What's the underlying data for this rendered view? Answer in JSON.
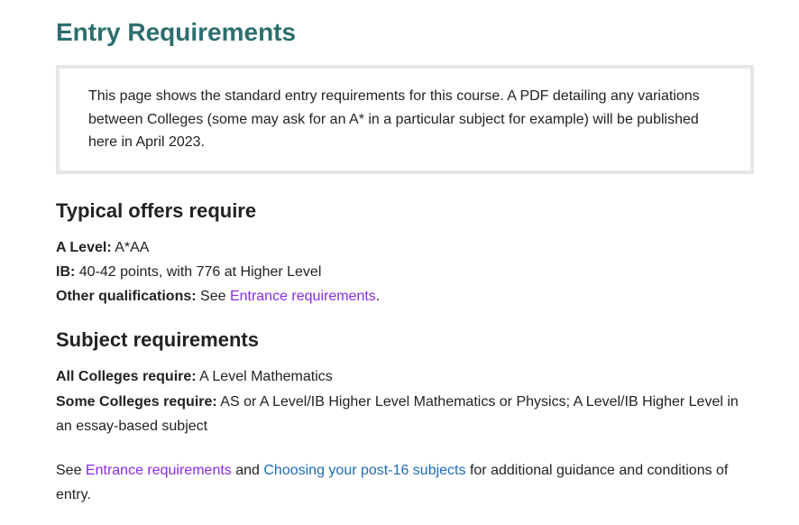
{
  "heading": "Entry Requirements",
  "notice": "This page shows the standard entry requirements for this course. A PDF detailing any variations between Colleges (some may ask for an A* in a particular subject for example) will be published here in April 2023.",
  "offers": {
    "heading": "Typical offers require",
    "a_level_label": "A Level:",
    "a_level_value": " A*AA",
    "ib_label": "IB:",
    "ib_value": " 40-42 points, with 776 at Higher Level",
    "other_label": "Other qualifications:",
    "other_prefix": " See ",
    "other_link": "Entrance requirements",
    "other_suffix": "."
  },
  "subjects": {
    "heading": "Subject requirements",
    "all_label": "All Colleges require:",
    "all_value": " A Level Mathematics",
    "some_label": "Some Colleges require:",
    "some_value": " AS or A Level/IB Higher Level Mathematics or Physics; A Level/IB Higher Level in an essay-based subject"
  },
  "footer": {
    "prefix": "See ",
    "link1": "Entrance requirements",
    "mid": " and ",
    "link2": "Choosing your post-16 subjects",
    "suffix": " for additional guidance and conditions of entry."
  }
}
